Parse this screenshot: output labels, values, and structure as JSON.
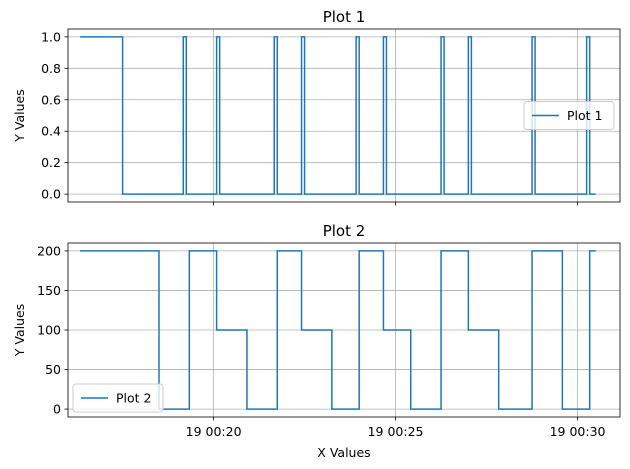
{
  "chart_data": [
    {
      "type": "line",
      "title": "Plot 1",
      "xlabel": "",
      "ylabel": "Y Values",
      "xlim": [
        "00:16:00",
        "00:31:10"
      ],
      "ylim": [
        -0.05,
        1.05
      ],
      "yticks": [
        0.0,
        0.2,
        0.4,
        0.6,
        0.8,
        1.0
      ],
      "ytick_labels": [
        "0.0",
        "0.2",
        "0.4",
        "0.6",
        "0.8",
        "1.0"
      ],
      "xticks": [
        "00:20:00",
        "00:25:00",
        "00:30:00"
      ],
      "xtick_labels": [],
      "grid": true,
      "legend": "center-right",
      "color": "#1f77b4",
      "series": [
        {
          "name": "Plot 1",
          "step": "post",
          "x": [
            "00:16:20",
            "00:17:30",
            "00:19:10",
            "00:19:15",
            "00:19:20",
            "00:20:05",
            "00:20:10",
            "00:21:40",
            "00:21:45",
            "00:22:25",
            "00:22:30",
            "00:23:55",
            "00:24:00",
            "00:24:40",
            "00:24:45",
            "00:26:15",
            "00:26:20",
            "00:27:00",
            "00:27:05",
            "00:28:45",
            "00:28:50",
            "00:30:15",
            "00:30:20",
            "00:30:30"
          ],
          "y": [
            1,
            0,
            1,
            0,
            0,
            1,
            0,
            1,
            0,
            1,
            0,
            1,
            0,
            1,
            0,
            1,
            0,
            1,
            0,
            1,
            0,
            1,
            0,
            0
          ]
        }
      ]
    },
    {
      "type": "line",
      "title": "Plot 2",
      "xlabel": "X Values",
      "ylabel": "Y Values",
      "xlim": [
        "00:16:00",
        "00:31:10"
      ],
      "ylim": [
        -10,
        210
      ],
      "yticks": [
        0,
        50,
        100,
        150,
        200
      ],
      "ytick_labels": [
        "0",
        "50",
        "100",
        "150",
        "200"
      ],
      "xticks": [
        "00:20:00",
        "00:25:00",
        "00:30:00"
      ],
      "xtick_labels": [
        "19 00:20",
        "19 00:25",
        "19 00:30"
      ],
      "grid": true,
      "legend": "bottom-left",
      "color": "#1f77b4",
      "series": [
        {
          "name": "Plot 2",
          "step": "post",
          "x": [
            "00:16:20",
            "00:18:30",
            "00:19:20",
            "00:20:05",
            "00:20:55",
            "00:21:45",
            "00:22:25",
            "00:23:15",
            "00:24:00",
            "00:24:40",
            "00:25:25",
            "00:26:15",
            "00:27:00",
            "00:27:50",
            "00:28:45",
            "00:29:35",
            "00:30:20",
            "00:30:30"
          ],
          "y": [
            200,
            0,
            200,
            100,
            0,
            200,
            100,
            0,
            200,
            100,
            0,
            200,
            100,
            0,
            200,
            0,
            200,
            200
          ]
        }
      ]
    }
  ]
}
